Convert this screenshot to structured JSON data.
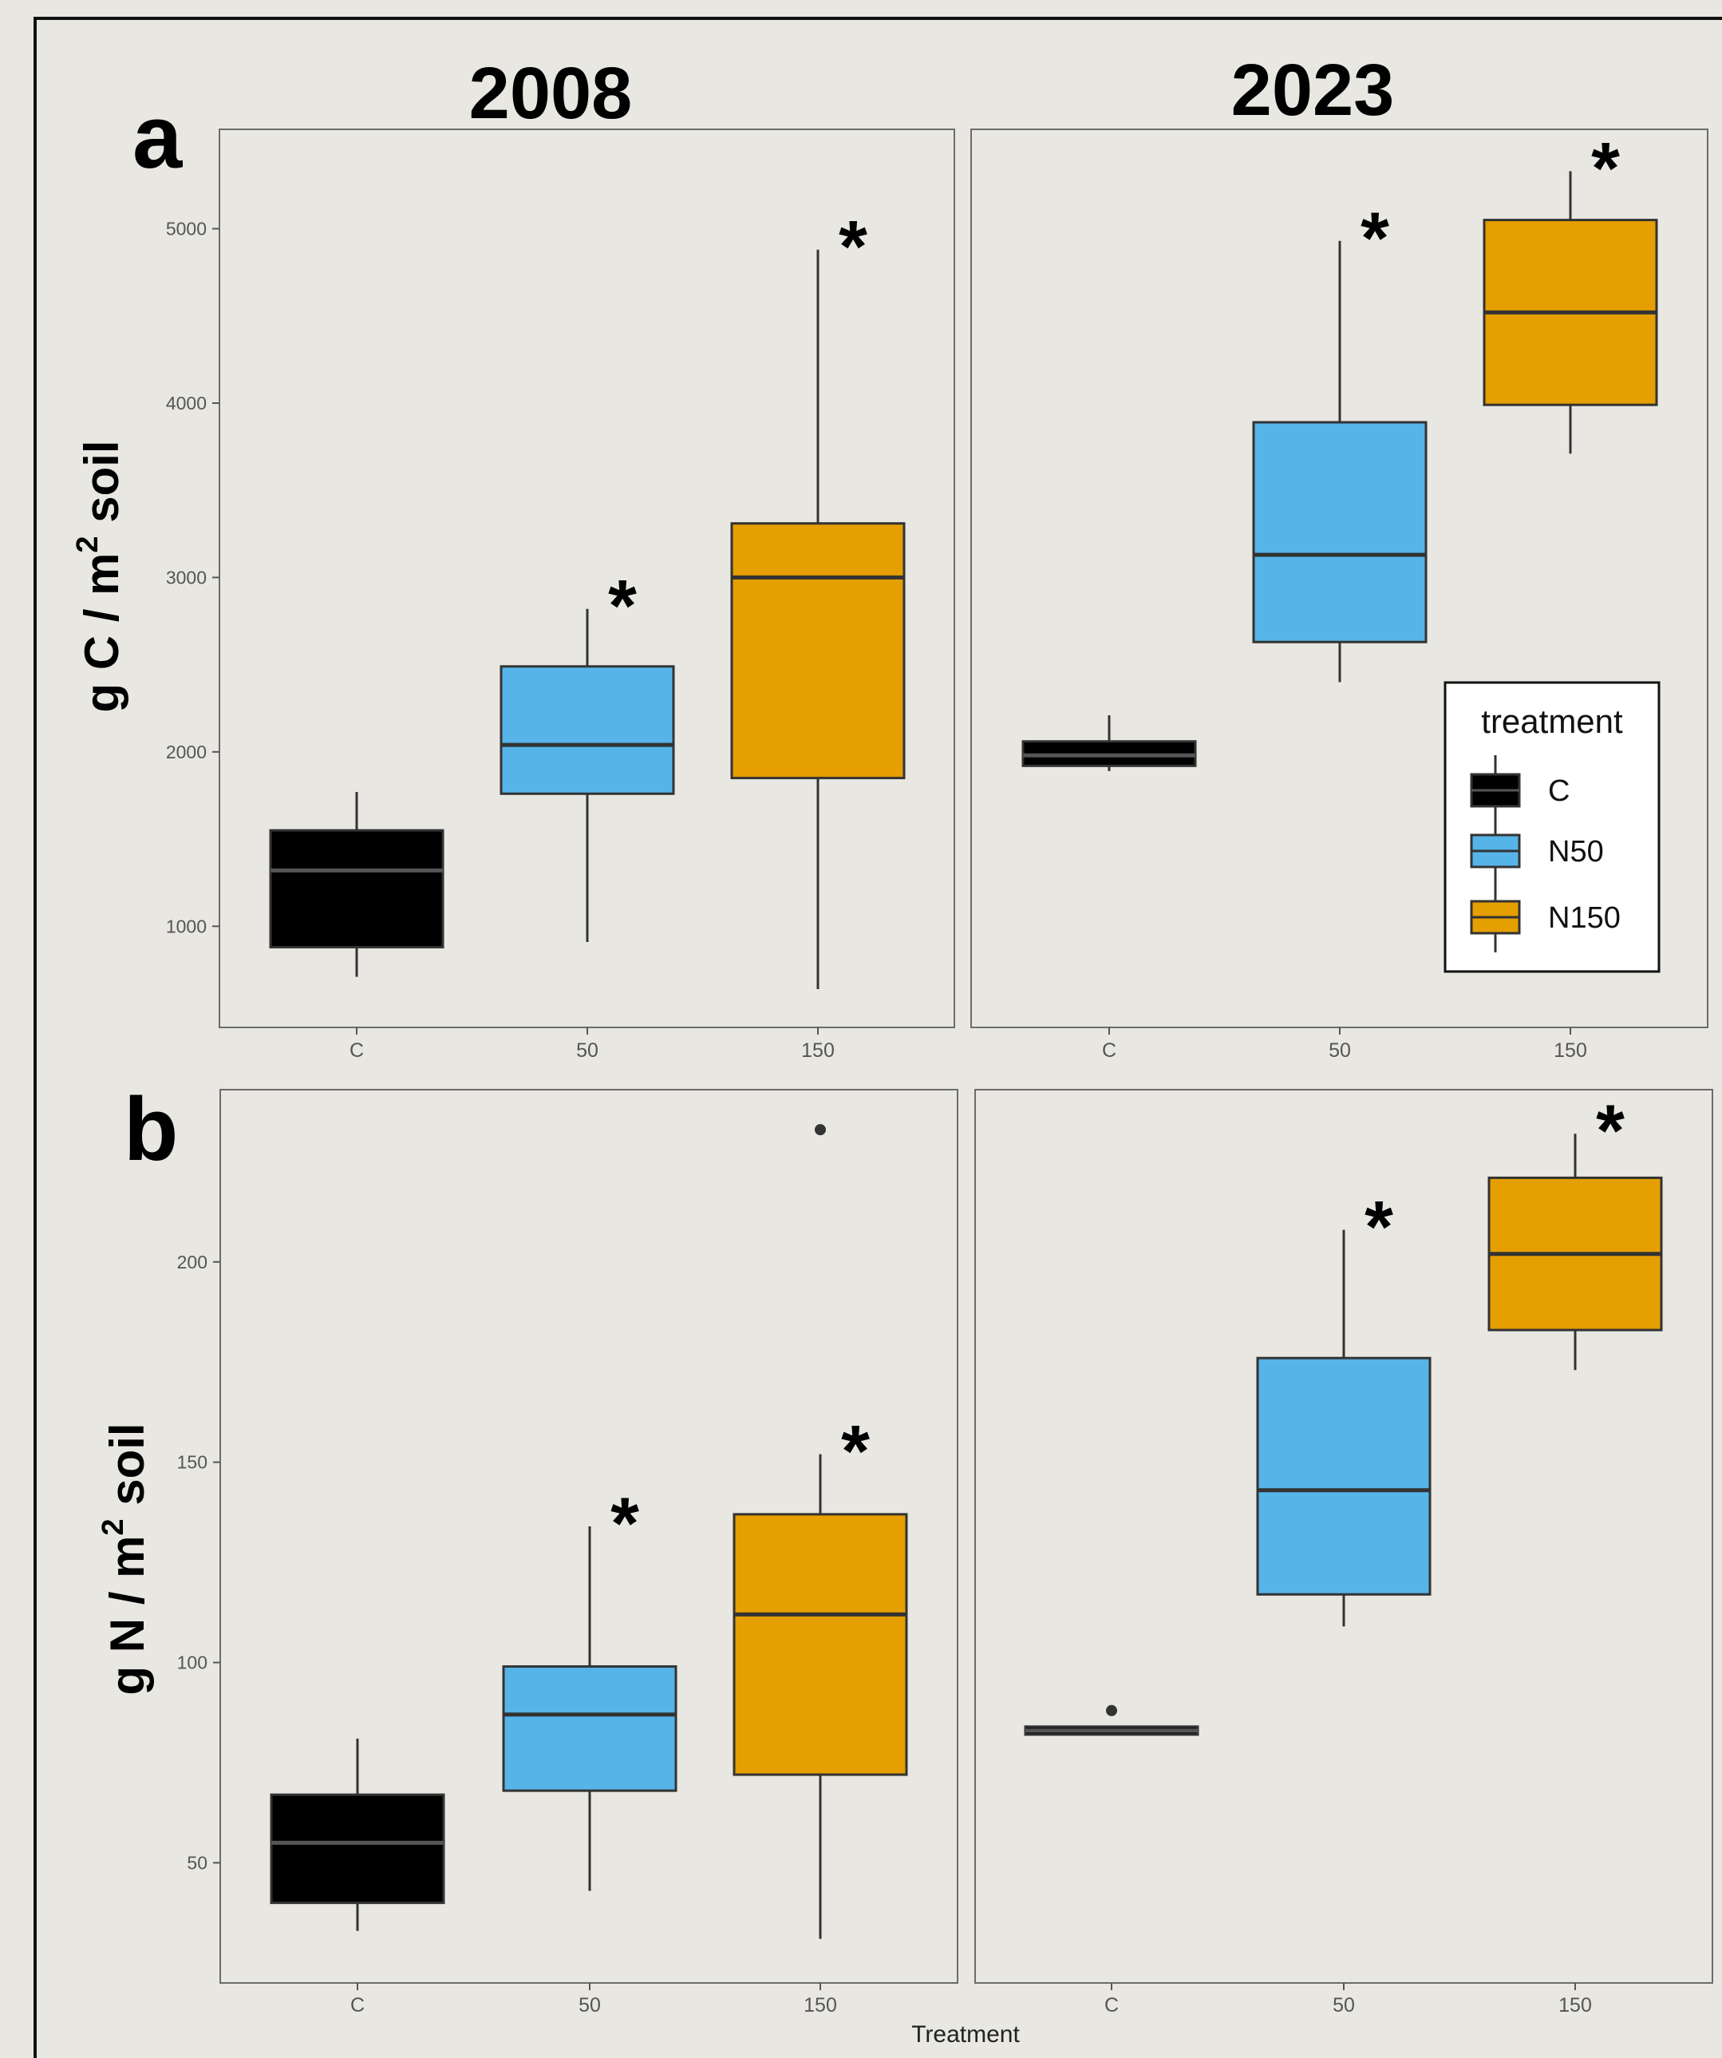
{
  "figure": {
    "year_titles": [
      "2008",
      "2023"
    ],
    "x_axis_title": "Treatment",
    "row_labels": [
      "a",
      "b"
    ],
    "ylabels": [
      {
        "prefix": "g C / m",
        "sup": "2",
        "suffix": " soil"
      },
      {
        "prefix": "g N / m",
        "sup": "2",
        "suffix": " soil"
      }
    ],
    "significance_mark": "*"
  },
  "legend": {
    "title": "treatment",
    "items": [
      {
        "label": "C",
        "color": "#000000"
      },
      {
        "label": "N50",
        "color": "#56b4e9"
      },
      {
        "label": "N150",
        "color": "#e69f00"
      }
    ]
  },
  "chart_data": [
    {
      "type": "box",
      "row": "a",
      "facet": "2008",
      "categories": [
        "C",
        "50",
        "150"
      ],
      "ylim": [
        420,
        5570
      ],
      "yticks": [
        1000,
        2000,
        3000,
        4000,
        5000
      ],
      "boxes": [
        {
          "category": "C",
          "min": 710,
          "q1": 880,
          "median": 1320,
          "q3": 1550,
          "max": 1770,
          "color": "#000000",
          "median_color": "#555555",
          "significant": false
        },
        {
          "category": "50",
          "min": 910,
          "q1": 1760,
          "median": 2040,
          "q3": 2490,
          "max": 2820,
          "color": "#56b4e9",
          "median_color": "#333333",
          "significant": true
        },
        {
          "category": "150",
          "min": 640,
          "q1": 1850,
          "median": 3000,
          "q3": 3310,
          "max": 4880,
          "color": "#e69f00",
          "median_color": "#333333",
          "significant": true
        }
      ]
    },
    {
      "type": "box",
      "row": "a",
      "facet": "2023",
      "categories": [
        "C",
        "50",
        "150"
      ],
      "ylim": [
        420,
        5570
      ],
      "yticks": [
        1000,
        2000,
        3000,
        4000,
        5000
      ],
      "boxes": [
        {
          "category": "C",
          "min": 1890,
          "q1": 1920,
          "median": 1980,
          "q3": 2060,
          "max": 2210,
          "color": "#000000",
          "median_color": "#555555",
          "significant": false
        },
        {
          "category": "50",
          "min": 2400,
          "q1": 2630,
          "median": 3130,
          "q3": 3890,
          "max": 4930,
          "color": "#56b4e9",
          "median_color": "#333333",
          "significant": true
        },
        {
          "category": "150",
          "min": 3710,
          "q1": 3990,
          "median": 4520,
          "q3": 5050,
          "max": 5330,
          "color": "#e69f00",
          "median_color": "#333333",
          "significant": true
        }
      ]
    },
    {
      "type": "box",
      "row": "b",
      "facet": "2008",
      "categories": [
        "C",
        "50",
        "150"
      ],
      "ylim": [
        20,
        243
      ],
      "yticks": [
        50,
        100,
        150,
        200
      ],
      "boxes": [
        {
          "category": "C",
          "min": 33,
          "q1": 40,
          "median": 55,
          "q3": 67,
          "max": 81,
          "color": "#000000",
          "median_color": "#555555",
          "significant": false
        },
        {
          "category": "50",
          "min": 43,
          "q1": 68,
          "median": 87,
          "q3": 99,
          "max": 134,
          "color": "#56b4e9",
          "median_color": "#333333",
          "significant": true
        },
        {
          "category": "150",
          "min": 31,
          "q1": 72,
          "median": 112,
          "q3": 137,
          "max": 152,
          "color": "#e69f00",
          "median_color": "#333333",
          "significant": true,
          "outliers": [
            233
          ]
        }
      ]
    },
    {
      "type": "box",
      "row": "b",
      "facet": "2023",
      "categories": [
        "C",
        "50",
        "150"
      ],
      "ylim": [
        20,
        243
      ],
      "yticks": [
        50,
        100,
        150,
        200
      ],
      "boxes": [
        {
          "category": "C",
          "min": 82,
          "q1": 82,
          "median": 83,
          "q3": 84,
          "max": 84,
          "color": "#000000",
          "median_color": "#555555",
          "significant": false,
          "outliers": [
            88
          ]
        },
        {
          "category": "50",
          "min": 109,
          "q1": 117,
          "median": 143,
          "q3": 176,
          "max": 208,
          "color": "#56b4e9",
          "median_color": "#333333",
          "significant": true
        },
        {
          "category": "150",
          "min": 173,
          "q1": 183,
          "median": 202,
          "q3": 221,
          "max": 232,
          "color": "#e69f00",
          "median_color": "#333333",
          "significant": true
        }
      ]
    }
  ]
}
